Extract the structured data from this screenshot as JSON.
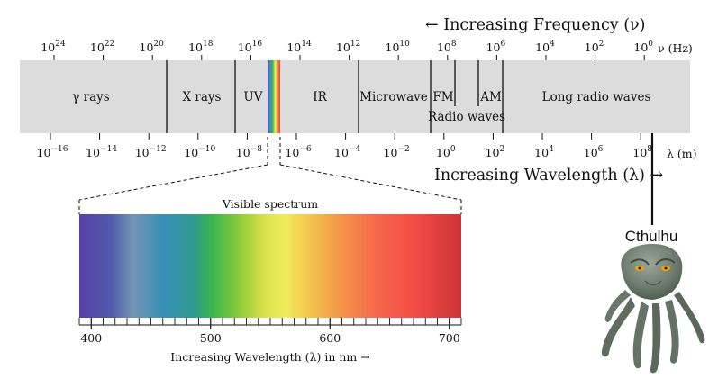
{
  "frequency_heading": "← Increasing Frequency (ν)",
  "frequency_unit": "ν (Hz)",
  "frequency_ticks": [
    {
      "base": "10",
      "exp": "24"
    },
    {
      "base": "10",
      "exp": "22"
    },
    {
      "base": "10",
      "exp": "20"
    },
    {
      "base": "10",
      "exp": "18"
    },
    {
      "base": "10",
      "exp": "16"
    },
    {
      "base": "10",
      "exp": "14"
    },
    {
      "base": "10",
      "exp": "12"
    },
    {
      "base": "10",
      "exp": "10"
    },
    {
      "base": "10",
      "exp": "8"
    },
    {
      "base": "10",
      "exp": "6"
    },
    {
      "base": "10",
      "exp": "4"
    },
    {
      "base": "10",
      "exp": "2"
    },
    {
      "base": "10",
      "exp": "0"
    }
  ],
  "wavelength_unit": "λ (m)",
  "wavelength_ticks": [
    {
      "base": "10",
      "exp": "−16"
    },
    {
      "base": "10",
      "exp": "−14"
    },
    {
      "base": "10",
      "exp": "−12"
    },
    {
      "base": "10",
      "exp": "−10"
    },
    {
      "base": "10",
      "exp": "−8"
    },
    {
      "base": "10",
      "exp": "−6"
    },
    {
      "base": "10",
      "exp": "−4"
    },
    {
      "base": "10",
      "exp": "−2"
    },
    {
      "base": "10",
      "exp": "0"
    },
    {
      "base": "10",
      "exp": "2"
    },
    {
      "base": "10",
      "exp": "4"
    },
    {
      "base": "10",
      "exp": "6"
    },
    {
      "base": "10",
      "exp": "8"
    }
  ],
  "wavelength_heading": "Increasing Wavelength (λ) →",
  "bands": {
    "gamma": "γ rays",
    "xray": "X rays",
    "uv": "UV",
    "ir": "IR",
    "microwave": "Microwave",
    "fm": "FM",
    "am": "AM",
    "radio": "Radio waves",
    "long_radio": "Long radio waves"
  },
  "visible": {
    "title": "Visible spectrum",
    "axis_label": "Increasing Wavelength (λ) in nm →",
    "ticks": [
      "400",
      "500",
      "600",
      "700"
    ]
  },
  "cthulhu": {
    "label": "Cthulhu",
    "illustration": "cthulhu-head-illustration"
  },
  "colors": {
    "band_fill": "#dcdcdc",
    "divider": "#111111",
    "spectrum_stops": [
      "#5b3fa8",
      "#4e55a8",
      "#6e8fb5",
      "#3b8fb5",
      "#2f9a8f",
      "#39b54a",
      "#8fcc3b",
      "#d8e04a",
      "#f2ee5a",
      "#f3c24a",
      "#f29a4a",
      "#f6684c",
      "#f24a44",
      "#d43a3a",
      "#c7323a"
    ]
  }
}
